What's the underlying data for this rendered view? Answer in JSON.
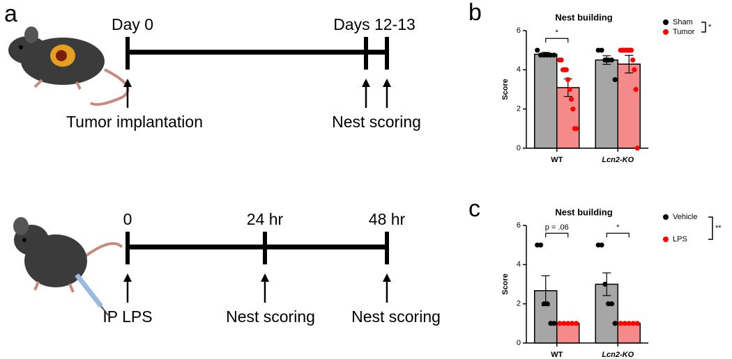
{
  "panel_labels": [
    "a",
    "b",
    "c"
  ],
  "timelines": [
    {
      "labels_top": [
        "Day 0",
        "Days 12-13"
      ],
      "labels_bottom": [
        "Tumor implantation",
        "Nest scoring"
      ]
    },
    {
      "labels_top": [
        "0",
        "24 hr",
        "48 hr"
      ],
      "labels_bottom": [
        "IP LPS",
        "Nest scoring",
        "Nest scoring"
      ]
    }
  ],
  "chart_data": [
    {
      "type": "bar",
      "title": "Nest  building",
      "ylabel": "Score",
      "categories": [
        "WT",
        "Lcn2-KO"
      ],
      "ylim": [
        0,
        6
      ],
      "yticks": [
        0,
        2,
        4,
        6
      ],
      "series": [
        {
          "name": "Sham",
          "color": "#a6a6a6",
          "point_color": "#000000",
          "values": [
            4.79,
            4.5
          ],
          "errors": [
            0.1,
            0.22
          ],
          "points": [
            [
              5,
              4.75,
              4.75,
              4.75,
              4.75,
              4.75
            ],
            [
              5,
              5,
              4.5,
              4.5,
              4.5,
              3.5
            ]
          ]
        },
        {
          "name": "Tumor",
          "color": "#f48a8a",
          "point_color": "#ff0000",
          "values": [
            3.09,
            4.29
          ],
          "errors": [
            0.45,
            0.45
          ],
          "points": [
            [
              4.5,
              4.5,
              4,
              4,
              4,
              3.5,
              3,
              2.5,
              2,
              1,
              1
            ],
            [
              5,
              5,
              5,
              5,
              5,
              5,
              5,
              5,
              4.5,
              4,
              3,
              0
            ]
          ]
        }
      ],
      "annotations": [
        "*"
      ],
      "legend_annotation": "*"
    },
    {
      "type": "bar",
      "title": "Nest building",
      "ylabel": "Score",
      "categories": [
        "WT",
        "Lcn2-KO"
      ],
      "ylim": [
        0,
        6
      ],
      "yticks": [
        0,
        2,
        4,
        6
      ],
      "series": [
        {
          "name": "Vehicle",
          "color": "#a6a6a6",
          "point_color": "#000000",
          "values": [
            2.67,
            3
          ],
          "errors": [
            0.76,
            0.58
          ],
          "points": [
            [
              5,
              5,
              2,
              2,
              1,
              1
            ],
            [
              5,
              5,
              3,
              2,
              2,
              1
            ]
          ]
        },
        {
          "name": "LPS",
          "color": "#f48a8a",
          "point_color": "#ff0000",
          "values": [
            1,
            1
          ],
          "errors": [
            0,
            0
          ],
          "points": [
            [
              1,
              1,
              1,
              1,
              1
            ],
            [
              1,
              1,
              1,
              1,
              1
            ]
          ]
        }
      ],
      "annotations": [
        "p = .06",
        "*"
      ],
      "legend_annotation": "**"
    }
  ]
}
